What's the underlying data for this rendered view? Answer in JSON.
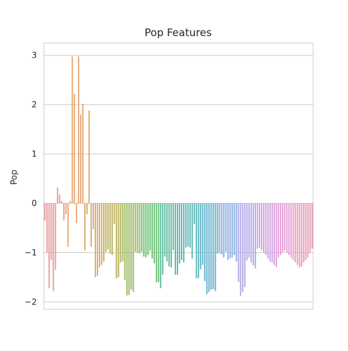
{
  "chart_data": {
    "type": "bar",
    "title": "Pop Features",
    "xlabel": "",
    "ylabel": "Pop",
    "ylim": [
      -2.15,
      3.25
    ],
    "yticks": [
      3,
      2,
      1,
      0,
      -1,
      -2
    ],
    "grid": "horizontal",
    "xtick_labels_visible": false,
    "n_bars": 128,
    "palette": [
      "#e99a9a",
      "#e6a878",
      "#d9ac6a",
      "#b9b15f",
      "#9ab85c",
      "#6bbf76",
      "#5cbb9e",
      "#5db7b7",
      "#64b1cc",
      "#8aaedf",
      "#b3a8e6",
      "#cfa0e3",
      "#e39fd4",
      "#e99ab8"
    ],
    "values": [
      -0.35,
      -1.0,
      -1.72,
      -1.15,
      -1.78,
      -1.35,
      0.32,
      0.18,
      0.05,
      -0.35,
      -0.22,
      -0.88,
      0.05,
      2.98,
      2.22,
      -0.4,
      2.98,
      1.8,
      2.02,
      -0.95,
      -0.22,
      1.88,
      -0.88,
      -0.52,
      -1.5,
      -1.47,
      -1.3,
      -1.25,
      -1.18,
      -0.98,
      -0.93,
      -1.02,
      -1.05,
      -0.42,
      -1.52,
      -1.5,
      -1.2,
      -1.18,
      -1.56,
      -1.87,
      -1.86,
      -1.75,
      -1.8,
      -0.98,
      -1.0,
      -1.02,
      -0.98,
      -1.08,
      -1.1,
      -1.05,
      -0.96,
      -1.12,
      -1.22,
      -1.6,
      -1.6,
      -1.72,
      -1.45,
      -1.08,
      -1.18,
      -1.28,
      -1.3,
      -0.95,
      -1.45,
      -1.45,
      -1.22,
      -1.15,
      -1.2,
      -0.9,
      -0.88,
      -0.9,
      -1.12,
      -0.42,
      -1.52,
      -1.52,
      -1.34,
      -1.25,
      -1.58,
      -1.84,
      -1.8,
      -1.75,
      -1.74,
      -1.78,
      -1.02,
      -1.0,
      -1.04,
      -1.1,
      -0.98,
      -1.15,
      -1.12,
      -1.1,
      -1.05,
      -1.18,
      -1.6,
      -1.88,
      -1.8,
      -1.7,
      -1.16,
      -1.1,
      -1.2,
      -1.26,
      -1.32,
      -0.92,
      -0.9,
      -0.95,
      -1.0,
      -1.05,
      -1.12,
      -1.18,
      -1.2,
      -1.25,
      -1.3,
      -1.1,
      -1.05,
      -1.0,
      -0.95,
      -1.0,
      -1.05,
      -1.1,
      -1.15,
      -1.2,
      -1.25,
      -1.3,
      -1.28,
      -1.2,
      -1.15,
      -1.1,
      -1.0,
      -0.92
    ]
  }
}
